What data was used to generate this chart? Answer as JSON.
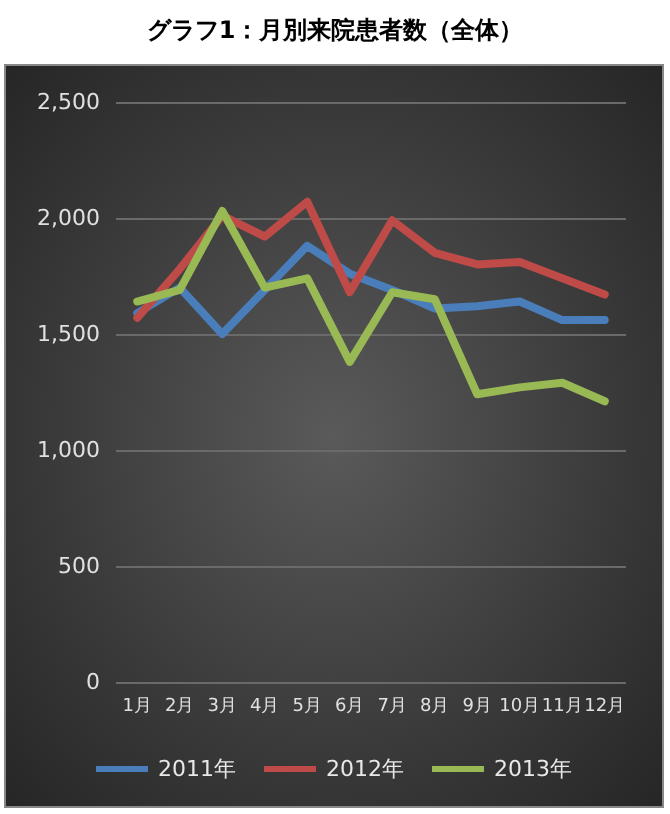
{
  "chart_data": {
    "type": "line",
    "title": "グラフ1：月別来院患者数（全体）",
    "categories": [
      "1月",
      "2月",
      "3月",
      "4月",
      "5月",
      "6月",
      "7月",
      "8月",
      "9月",
      "10月",
      "11月",
      "12月"
    ],
    "series": [
      {
        "name": "2011年",
        "color": "#4a7ebb",
        "values": [
          1590,
          1700,
          1500,
          1690,
          1880,
          1760,
          1690,
          1610,
          1620,
          1640,
          1560,
          1560
        ]
      },
      {
        "name": "2012年",
        "color": "#be4b48",
        "values": [
          1570,
          1780,
          2010,
          1920,
          2070,
          1680,
          1990,
          1850,
          1800,
          1810,
          1740,
          1670
        ]
      },
      {
        "name": "2013年",
        "color": "#98b954",
        "values": [
          1640,
          1690,
          2030,
          1700,
          1740,
          1380,
          1680,
          1650,
          1240,
          1270,
          1290,
          1210
        ]
      }
    ],
    "ylim": [
      0,
      2500
    ],
    "yticks": [
      0,
      500,
      {
        "value": 1000,
        "label": "1,000"
      },
      {
        "value": 1500,
        "label": "1,500"
      },
      {
        "value": 2000,
        "label": "2,000"
      },
      {
        "value": 2500,
        "label": "2,500"
      }
    ],
    "grid": "y",
    "legend": "bottom",
    "marker": "none",
    "line_style": "solid"
  }
}
